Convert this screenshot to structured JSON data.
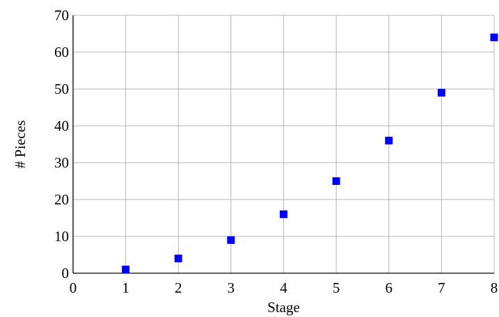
{
  "chart_data": {
    "type": "scatter",
    "title": "",
    "xlabel": "Stage",
    "ylabel": "# Pieces",
    "x": [
      1,
      2,
      3,
      4,
      5,
      6,
      7,
      8
    ],
    "series": [
      {
        "values": [
          1,
          4,
          9,
          16,
          25,
          36,
          49,
          64
        ],
        "color": "#0000ff",
        "marker": "square"
      }
    ],
    "xlim": [
      0,
      8
    ],
    "ylim": [
      0,
      70
    ],
    "xticks": [
      0,
      1,
      2,
      3,
      4,
      5,
      6,
      7,
      8
    ],
    "yticks": [
      0,
      10,
      20,
      30,
      40,
      50,
      60,
      70
    ],
    "grid": true,
    "legend": "none"
  }
}
